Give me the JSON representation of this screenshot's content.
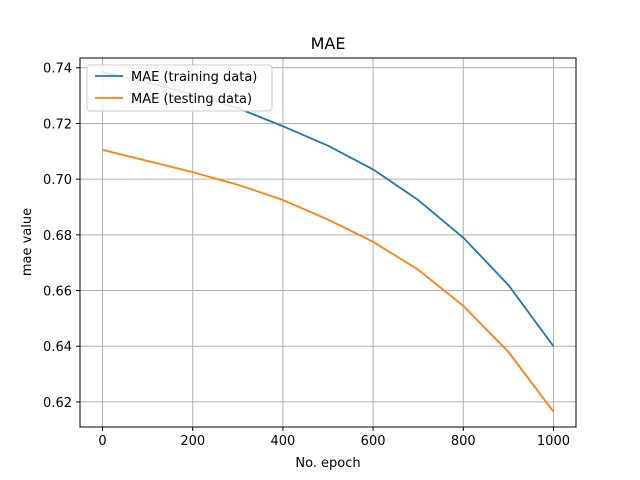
{
  "chart_data": {
    "type": "line",
    "title": "MAE",
    "xlabel": "No. epoch",
    "ylabel": "mae value",
    "xlim": [
      -50,
      1050
    ],
    "ylim": [
      0.611,
      0.7435
    ],
    "xticks": [
      0,
      200,
      400,
      600,
      800,
      1000
    ],
    "yticks": [
      0.62,
      0.64,
      0.66,
      0.68,
      0.7,
      0.72,
      0.74
    ],
    "ytick_labels": [
      "0.62",
      "0.64",
      "0.66",
      "0.68",
      "0.70",
      "0.72",
      "0.74"
    ],
    "grid": true,
    "legend_position": "upper-left",
    "x": [
      0,
      100,
      200,
      300,
      400,
      500,
      600,
      700,
      800,
      900,
      1000
    ],
    "series": [
      {
        "name": "MAE (training data)",
        "color": "#1f77b4",
        "values": [
          0.7385,
          0.7345,
          0.7305,
          0.7255,
          0.719,
          0.712,
          0.7035,
          0.6925,
          0.679,
          0.662,
          0.64
        ]
      },
      {
        "name": "MAE (testing data)",
        "color": "#ff7f0e",
        "values": [
          0.7105,
          0.7065,
          0.7025,
          0.698,
          0.6925,
          0.6855,
          0.6775,
          0.6675,
          0.6545,
          0.638,
          0.6165
        ]
      }
    ]
  }
}
